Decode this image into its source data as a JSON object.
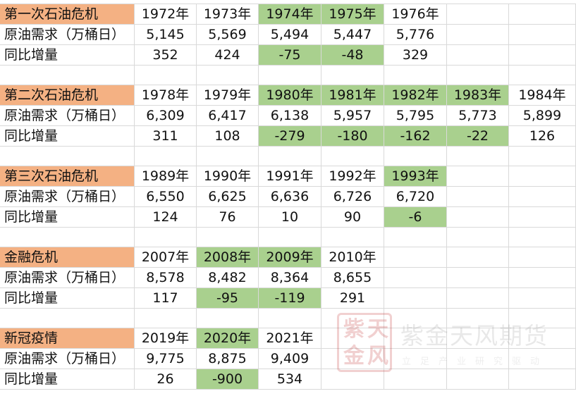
{
  "sheet": {
    "blocks": [
      {
        "title": "第一次石油危机",
        "years": [
          "1972年",
          "1973年",
          "1974年",
          "1975年",
          "1976年"
        ],
        "demand_label": "原油需求（万桶日）",
        "demand": [
          "5,145",
          "5,569",
          "5,494",
          "5,447",
          "5,776"
        ],
        "change_label": "同比增量",
        "change": [
          "352",
          "424",
          "-75",
          "-48",
          "329"
        ],
        "highlight_cols": [
          2,
          3
        ],
        "highlight_change_cols": [
          2,
          3
        ]
      },
      {
        "title": "第二次石油危机",
        "years": [
          "1978年",
          "1979年",
          "1980年",
          "1981年",
          "1982年",
          "1983年",
          "1984年"
        ],
        "demand_label": "原油需求（万桶日）",
        "demand": [
          "6,309",
          "6,417",
          "6,138",
          "5,957",
          "5,795",
          "5,773",
          "5,899"
        ],
        "change_label": "同比增量",
        "change": [
          "311",
          "108",
          "-279",
          "-180",
          "-162",
          "-22",
          "126"
        ],
        "highlight_cols": [
          2,
          3,
          4,
          5
        ],
        "highlight_change_cols": [
          2,
          3,
          4,
          5
        ]
      },
      {
        "title": "第三次石油危机",
        "years": [
          "1989年",
          "1990年",
          "1991年",
          "1992年",
          "1993年"
        ],
        "demand_label": "原油需求（万桶日）",
        "demand": [
          "6,550",
          "6,625",
          "6,636",
          "6,726",
          "6,720"
        ],
        "change_label": "同比增量",
        "change": [
          "124",
          "76",
          "10",
          "90",
          "-6"
        ],
        "highlight_cols": [
          4
        ],
        "highlight_change_cols": [
          4
        ]
      },
      {
        "title": "金融危机",
        "years": [
          "2007年",
          "2008年",
          "2009年",
          "2010年"
        ],
        "demand_label": "原油需求（万桶日）",
        "demand": [
          "8,578",
          "8,482",
          "8,364",
          "8,655"
        ],
        "change_label": "同比增量",
        "change": [
          "117",
          "-95",
          "-119",
          "291"
        ],
        "highlight_cols": [
          1,
          2
        ],
        "highlight_change_cols": [
          1,
          2
        ]
      },
      {
        "title": "新冠疫情",
        "years": [
          "2019年",
          "2020年",
          "2021年"
        ],
        "demand_label": "原油需求（万桶日）",
        "demand": [
          "9,775",
          "8,875",
          "9,409"
        ],
        "change_label": "同比增量",
        "change": [
          "26",
          "-900",
          "534"
        ],
        "highlight_cols": [
          1
        ],
        "highlight_change_cols": [
          1
        ]
      }
    ]
  },
  "colors": {
    "title_fill": "#f4b183",
    "highlight_fill": "#a9d08e",
    "grid": "#d9d9d9"
  },
  "watermark": {
    "name": "紫金天风期货",
    "slogan": "立足产业研究驱动",
    "seal_chars": [
      "紫",
      "天",
      "金",
      "风"
    ]
  }
}
